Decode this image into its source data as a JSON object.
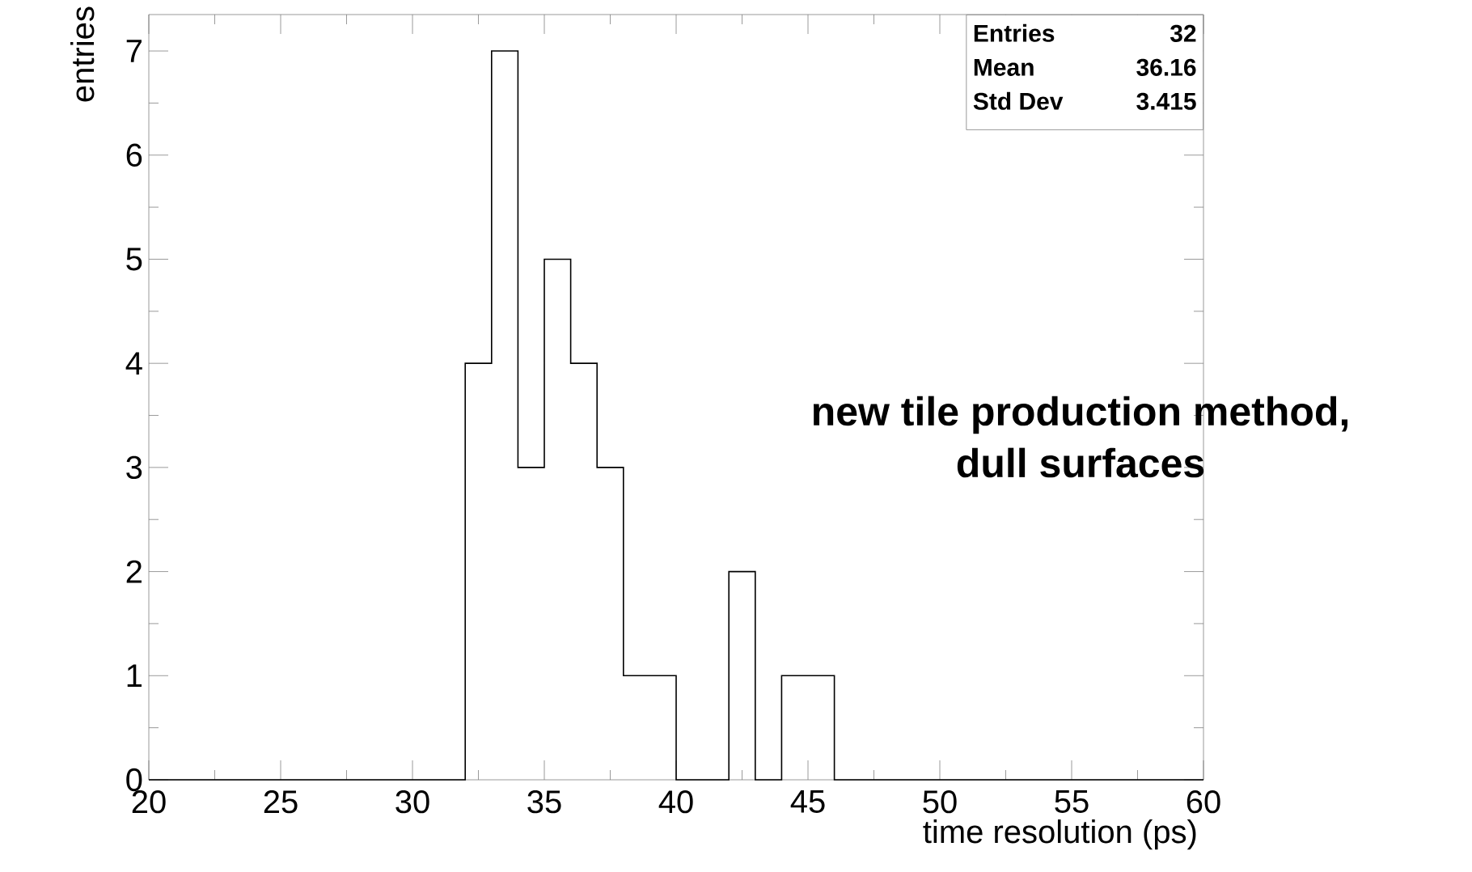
{
  "chart_data": {
    "type": "histogram",
    "xlabel": "time resolution (ps)",
    "ylabel": "entries",
    "bins": [
      20,
      21,
      22,
      23,
      24,
      25,
      26,
      27,
      28,
      29,
      30,
      31,
      32,
      33,
      34,
      35,
      36,
      37,
      38,
      39,
      40,
      41,
      42,
      43,
      44,
      45,
      46,
      47,
      48,
      49,
      50,
      51,
      52,
      53,
      54,
      55,
      56,
      57,
      58,
      59,
      60
    ],
    "values": [
      0,
      0,
      0,
      0,
      0,
      0,
      0,
      0,
      0,
      0,
      0,
      0,
      4,
      7,
      3,
      5,
      4,
      3,
      1,
      1,
      0,
      0,
      2,
      0,
      1,
      1,
      0,
      0,
      0,
      0,
      0,
      0,
      0,
      0,
      0,
      0,
      0,
      0,
      0,
      0
    ],
    "color": "#000000",
    "xlim": [
      20,
      60
    ],
    "ylim": [
      0,
      7.35
    ],
    "xticks": [
      20,
      25,
      30,
      35,
      40,
      45,
      50,
      55,
      60
    ],
    "yticks": [
      0,
      1,
      2,
      3,
      4,
      5,
      6,
      7
    ],
    "annotations": [
      "Entries",
      "32",
      "Mean",
      "36.16",
      "Std Dev",
      "3.415",
      "new tile production method,",
      "dull surfaces"
    ]
  }
}
